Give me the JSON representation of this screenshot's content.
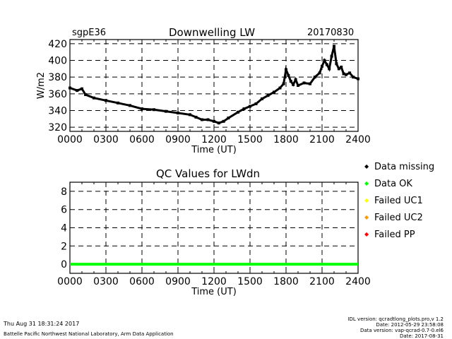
{
  "header": {
    "site": "sgpE36",
    "title": "Downwelling LW",
    "date": "20170830"
  },
  "legend": {
    "items": [
      {
        "label": "Data missing",
        "color": "#000000"
      },
      {
        "label": "Data OK",
        "color": "#00ff00"
      },
      {
        "label": "Failed UC1",
        "color": "#ffff00"
      },
      {
        "label": "Failed UC2",
        "color": "#ff9900"
      },
      {
        "label": "Failed PP",
        "color": "#ff0000"
      }
    ]
  },
  "footer": {
    "timestamp": "Thu Aug 31 18:31:24 2017",
    "org": "Battelle Pacific Northwest National Laboratory, Arm Data Application",
    "idl_version": "IDL version: qcradtlong_plots.pro,v 1.2",
    "code_date": "Date: 2012-05-29 23:58:08",
    "data_version": "Data version: vap-qcrad-0.7-0.el6",
    "data_date": "Date: 2017-08-31"
  },
  "chart_data": [
    {
      "type": "scatter",
      "title": "Downwelling LW",
      "xlabel": "Time (UT)",
      "ylabel": "W/m2",
      "xlim": [
        0,
        2400
      ],
      "ylim": [
        315,
        425
      ],
      "xticks": [
        0,
        300,
        600,
        900,
        1200,
        1500,
        1800,
        2100,
        2400
      ],
      "xtick_labels": [
        "0000",
        "0300",
        "0600",
        "0900",
        "1200",
        "1500",
        "1800",
        "2100",
        "2400"
      ],
      "yticks": [
        320,
        340,
        360,
        380,
        400,
        420
      ],
      "ytick_labels": [
        "320",
        "340",
        "360",
        "380",
        "400",
        "420"
      ],
      "grid": true,
      "series": [
        {
          "name": "Downwelling LW",
          "x": [
            0,
            60,
            100,
            130,
            200,
            300,
            400,
            500,
            600,
            700,
            800,
            900,
            1000,
            1050,
            1100,
            1150,
            1200,
            1240,
            1280,
            1320,
            1400,
            1450,
            1500,
            1550,
            1600,
            1650,
            1700,
            1750,
            1780,
            1800,
            1820,
            1840,
            1860,
            1880,
            1900,
            1950,
            2000,
            2040,
            2080,
            2100,
            2120,
            2140,
            2160,
            2180,
            2200,
            2220,
            2240,
            2260,
            2280,
            2300,
            2330,
            2360,
            2400
          ],
          "y": [
            367,
            364,
            366,
            359,
            355,
            352,
            349,
            346,
            342,
            341,
            339,
            337,
            335,
            332,
            329,
            329,
            327,
            325,
            327,
            331,
            338,
            342,
            345,
            348,
            354,
            358,
            362,
            367,
            372,
            389,
            382,
            375,
            371,
            377,
            370,
            373,
            372,
            380,
            385,
            393,
            400,
            395,
            390,
            405,
            417,
            396,
            390,
            392,
            384,
            383,
            385,
            380,
            378
          ]
        }
      ]
    },
    {
      "type": "line",
      "title": "QC Values for LWdn",
      "xlabel": "Time (UT)",
      "ylabel": "",
      "xlim": [
        0,
        2400
      ],
      "ylim": [
        -1,
        9
      ],
      "xticks": [
        0,
        300,
        600,
        900,
        1200,
        1500,
        1800,
        2100,
        2400
      ],
      "xtick_labels": [
        "0000",
        "0300",
        "0600",
        "0900",
        "1200",
        "1500",
        "1800",
        "2100",
        "2400"
      ],
      "yticks": [
        0,
        2,
        4,
        6,
        8
      ],
      "ytick_labels": [
        "0",
        "2",
        "4",
        "6",
        "8"
      ],
      "grid": true,
      "series": [
        {
          "name": "Data OK",
          "x": [
            0,
            2400
          ],
          "y": [
            0,
            0
          ],
          "color": "#00ff00"
        }
      ]
    }
  ]
}
